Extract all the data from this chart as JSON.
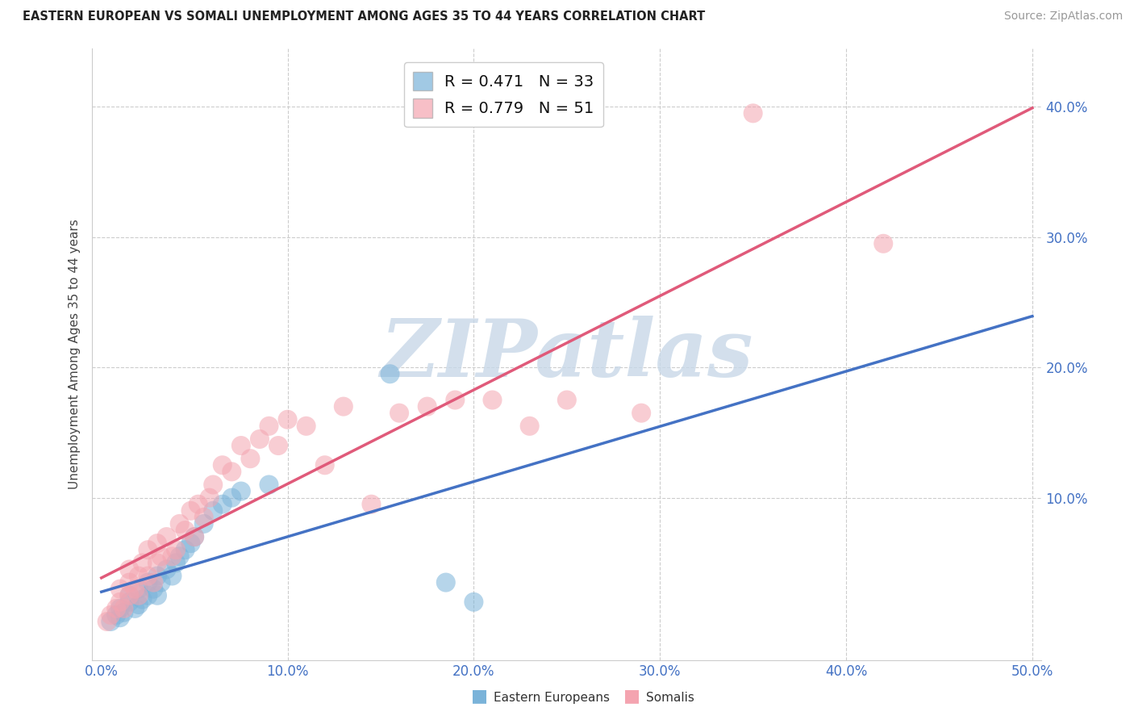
{
  "title": "EASTERN EUROPEAN VS SOMALI UNEMPLOYMENT AMONG AGES 35 TO 44 YEARS CORRELATION CHART",
  "source": "Source: ZipAtlas.com",
  "ylabel": "Unemployment Among Ages 35 to 44 years",
  "xlim": [
    -0.005,
    0.505
  ],
  "ylim": [
    -0.025,
    0.445
  ],
  "xticks": [
    0.0,
    0.1,
    0.2,
    0.3,
    0.4,
    0.5
  ],
  "yticks": [
    0.0,
    0.1,
    0.2,
    0.3,
    0.4
  ],
  "eastern_color": "#7ab3d9",
  "somali_color": "#f4a4b0",
  "eastern_line_color": "#4472c4",
  "somali_line_color": "#e05a7a",
  "legend_R1": "R = 0.471",
  "legend_N1": "N = 33",
  "legend_R2": "R = 0.779",
  "legend_N2": "N = 51",
  "eastern_x": [
    0.005,
    0.008,
    0.01,
    0.01,
    0.012,
    0.015,
    0.015,
    0.018,
    0.02,
    0.02,
    0.022,
    0.025,
    0.025,
    0.028,
    0.03,
    0.03,
    0.032,
    0.035,
    0.038,
    0.04,
    0.042,
    0.045,
    0.048,
    0.05,
    0.055,
    0.06,
    0.065,
    0.07,
    0.075,
    0.09,
    0.155,
    0.185,
    0.2
  ],
  "eastern_y": [
    0.005,
    0.01,
    0.008,
    0.015,
    0.012,
    0.02,
    0.025,
    0.015,
    0.018,
    0.03,
    0.022,
    0.025,
    0.035,
    0.03,
    0.025,
    0.04,
    0.035,
    0.045,
    0.04,
    0.05,
    0.055,
    0.06,
    0.065,
    0.07,
    0.08,
    0.09,
    0.095,
    0.1,
    0.105,
    0.11,
    0.195,
    0.035,
    0.02
  ],
  "somali_x": [
    0.003,
    0.005,
    0.008,
    0.01,
    0.01,
    0.012,
    0.015,
    0.015,
    0.015,
    0.018,
    0.02,
    0.02,
    0.022,
    0.025,
    0.025,
    0.028,
    0.03,
    0.03,
    0.032,
    0.035,
    0.038,
    0.04,
    0.042,
    0.045,
    0.048,
    0.05,
    0.052,
    0.055,
    0.058,
    0.06,
    0.065,
    0.07,
    0.075,
    0.08,
    0.085,
    0.09,
    0.095,
    0.1,
    0.11,
    0.12,
    0.13,
    0.145,
    0.16,
    0.175,
    0.19,
    0.21,
    0.23,
    0.25,
    0.29,
    0.35,
    0.42
  ],
  "somali_y": [
    0.005,
    0.01,
    0.015,
    0.02,
    0.03,
    0.015,
    0.025,
    0.035,
    0.045,
    0.03,
    0.025,
    0.04,
    0.05,
    0.04,
    0.06,
    0.035,
    0.05,
    0.065,
    0.055,
    0.07,
    0.055,
    0.06,
    0.08,
    0.075,
    0.09,
    0.07,
    0.095,
    0.085,
    0.1,
    0.11,
    0.125,
    0.12,
    0.14,
    0.13,
    0.145,
    0.155,
    0.14,
    0.16,
    0.155,
    0.125,
    0.17,
    0.095,
    0.165,
    0.17,
    0.175,
    0.175,
    0.155,
    0.175,
    0.165,
    0.395,
    0.295
  ],
  "background_color": "#ffffff",
  "grid_color": "#cccccc",
  "watermark_color": "#c8d8e8"
}
